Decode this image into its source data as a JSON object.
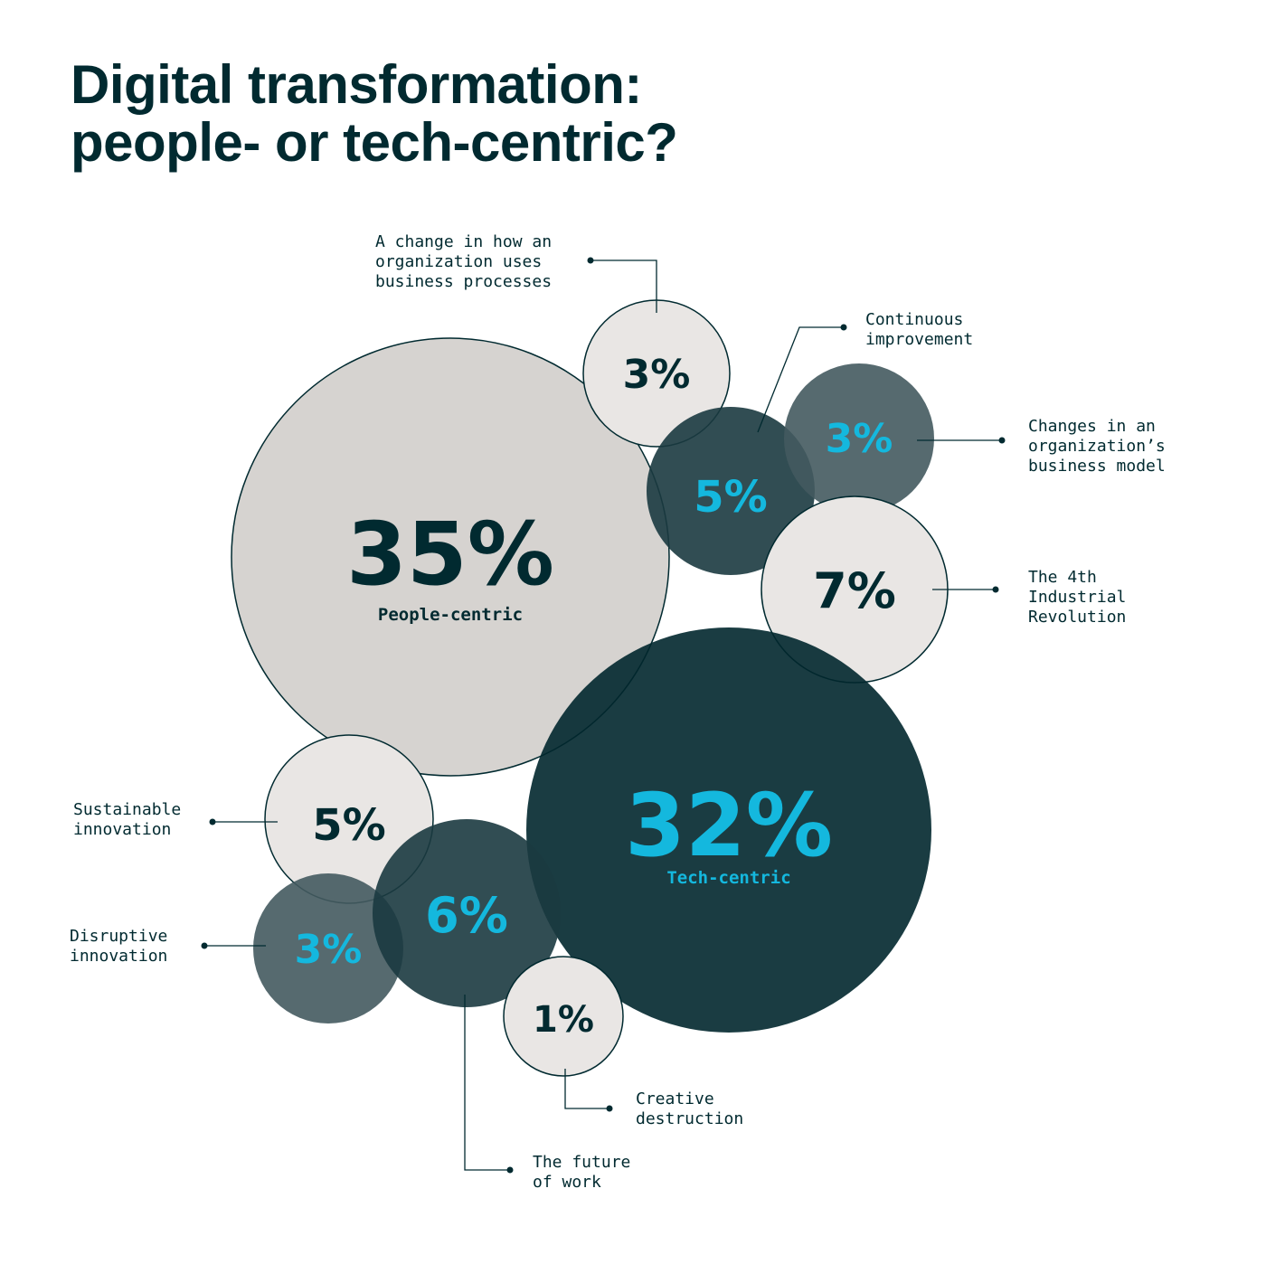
{
  "title": {
    "line1": "Digital transformation:",
    "line2": "people- or tech-centric?"
  },
  "colors": {
    "ink": "#012a30",
    "accent": "#14b8de",
    "light": "#e9e6e4",
    "big_light": "#d6d3d0",
    "mid_dark": "#1b3a40",
    "slate": "#445a5f",
    "darkest": "#01272d"
  },
  "chart_data": {
    "type": "bubble",
    "title": "Digital transformation: people- or tech-centric?",
    "bubbles": [
      {
        "name": "People-centric",
        "value": 35,
        "value_text": "35%",
        "group": "people",
        "show_name": true
      },
      {
        "name": "Tech-centric",
        "value": 32,
        "value_text": "32%",
        "group": "tech",
        "show_name": true
      },
      {
        "name": "A change in how an organization uses business processes",
        "lines": [
          "A change in how an",
          "organization uses",
          "business processes"
        ],
        "value": 3,
        "value_text": "3%",
        "group": "people"
      },
      {
        "name": "Continuous improvement",
        "lines": [
          "Continuous",
          "improvement"
        ],
        "value": 5,
        "value_text": "5%",
        "group": "tech"
      },
      {
        "name": "Changes in an organization’s business model",
        "lines": [
          "Changes in an",
          "organization’s",
          "business model"
        ],
        "value": 3,
        "value_text": "3%",
        "group": "tech"
      },
      {
        "name": "The 4th Industrial Revolution",
        "lines": [
          "The 4th",
          "Industrial",
          "Revolution"
        ],
        "value": 7,
        "value_text": "7%",
        "group": "people"
      },
      {
        "name": "Sustainable innovation",
        "lines": [
          "Sustainable",
          "innovation"
        ],
        "value": 5,
        "value_text": "5%",
        "group": "people"
      },
      {
        "name": "Disruptive innovation",
        "lines": [
          "Disruptive",
          "innovation"
        ],
        "value": 3,
        "value_text": "3%",
        "group": "tech"
      },
      {
        "name": "The future of work",
        "lines": [
          "The future",
          "of work"
        ],
        "value": 6,
        "value_text": "6%",
        "group": "tech"
      },
      {
        "name": "Creative destruction",
        "lines": [
          "Creative",
          "destruction"
        ],
        "value": 1,
        "value_text": "1%",
        "group": "people"
      }
    ]
  }
}
